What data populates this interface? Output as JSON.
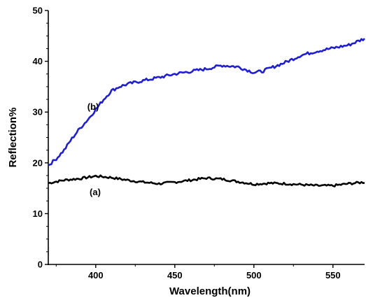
{
  "chart_data": {
    "type": "line",
    "title": "",
    "xlabel": "Wavelength(nm)",
    "ylabel": "Reflection%",
    "xlim": [
      370,
      570
    ],
    "ylim": [
      0,
      50
    ],
    "x_ticks": [
      400,
      450,
      500,
      550
    ],
    "y_ticks": [
      0,
      10,
      20,
      30,
      40,
      50
    ],
    "grid": false,
    "legend": "none",
    "series": [
      {
        "label": "(a)",
        "color": "#000000",
        "x": [
          370,
          380,
          390,
          400,
          410,
          420,
          430,
          440,
          450,
          460,
          470,
          480,
          490,
          500,
          510,
          520,
          530,
          540,
          550,
          560,
          570
        ],
        "y": [
          16.0,
          16.6,
          16.9,
          17.4,
          17.1,
          16.6,
          16.2,
          15.9,
          16.2,
          16.6,
          17.0,
          16.8,
          16.3,
          15.8,
          16.0,
          15.9,
          15.7,
          15.5,
          15.5,
          15.9,
          16.2
        ]
      },
      {
        "label": "(b)",
        "color": "#1f1fd0",
        "x": [
          370,
          375,
          380,
          385,
          390,
          395,
          400,
          405,
          410,
          415,
          420,
          430,
          440,
          450,
          460,
          470,
          480,
          490,
          500,
          505,
          510,
          520,
          530,
          540,
          550,
          560,
          570
        ],
        "y": [
          19.5,
          20.8,
          22.5,
          24.8,
          26.8,
          28.5,
          30.5,
          32.5,
          34.2,
          35.0,
          35.5,
          36.2,
          36.8,
          37.5,
          38.0,
          38.5,
          39.2,
          38.9,
          37.8,
          38.0,
          38.6,
          39.8,
          41.2,
          42.0,
          42.6,
          43.2,
          44.5
        ]
      }
    ]
  }
}
